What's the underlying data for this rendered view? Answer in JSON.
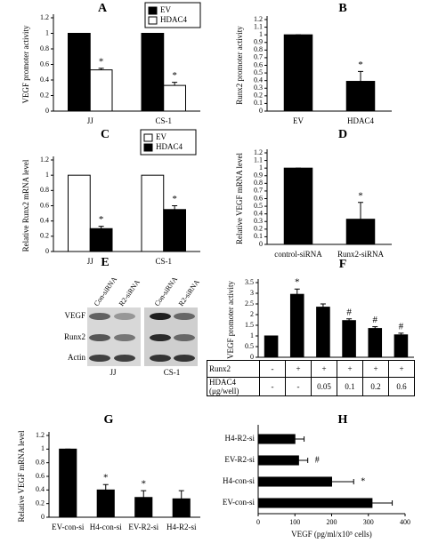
{
  "chart_data": [
    {
      "type": "bar",
      "label": "A",
      "ylabel": "VEGF promoter activity",
      "categories": [
        "JJ",
        "CS-1"
      ],
      "series": [
        {
          "name": "EV",
          "color": "#000000",
          "values": [
            1,
            1
          ]
        },
        {
          "name": "HDAC4",
          "color": "#ffffff",
          "values": [
            0.53,
            0.33
          ],
          "errors": [
            0.02,
            0.04
          ],
          "annotations": [
            "*",
            "*"
          ]
        }
      ],
      "ylim": [
        0,
        1.2
      ],
      "yticks": [
        0,
        0.2,
        0.4,
        0.6,
        0.8,
        1,
        1.2
      ],
      "legend": "upper right"
    },
    {
      "type": "bar",
      "label": "B",
      "ylabel": "Runx2 promoter activity",
      "categories": [
        "EV",
        "HDAC4"
      ],
      "values": [
        1,
        0.39
      ],
      "errors": [
        0,
        0.13
      ],
      "annotations": [
        null,
        "*"
      ],
      "color": "#000000",
      "ylim": [
        0,
        1.2
      ],
      "yticks": [
        0,
        0.1,
        0.2,
        0.3,
        0.4,
        0.5,
        0.6,
        0.7,
        0.8,
        0.9,
        1,
        1.1,
        1.2
      ]
    },
    {
      "type": "bar",
      "label": "C",
      "ylabel": "Relative Runx2 mRNA level",
      "categories": [
        "JJ",
        "CS-1"
      ],
      "series": [
        {
          "name": "EV",
          "color": "#ffffff",
          "values": [
            1,
            1
          ]
        },
        {
          "name": "HDAC4",
          "color": "#000000",
          "values": [
            0.3,
            0.55
          ],
          "errors": [
            0.03,
            0.05
          ],
          "annotations": [
            "*",
            "*"
          ]
        }
      ],
      "ylim": [
        0,
        1.2
      ],
      "yticks": [
        0,
        0.2,
        0.4,
        0.6,
        0.8,
        1,
        1.2
      ],
      "legend": "upper right"
    },
    {
      "type": "bar",
      "label": "D",
      "ylabel": "Relative VEGF mRNA level",
      "categories": [
        "control-siRNA",
        "Runx2-siRNA"
      ],
      "values": [
        1,
        0.33
      ],
      "errors": [
        0,
        0.22
      ],
      "annotations": [
        null,
        "*"
      ],
      "color": "#000000",
      "ylim": [
        0,
        1.2
      ],
      "yticks": [
        0,
        0.1,
        0.2,
        0.3,
        0.4,
        0.5,
        0.6,
        0.7,
        0.8,
        0.9,
        1,
        1.1,
        1.2
      ]
    },
    {
      "type": "bar",
      "label": "F",
      "ylabel": "VEGF promoter activity",
      "values": [
        1,
        2.95,
        2.35,
        1.72,
        1.35,
        1.05
      ],
      "errors": [
        0,
        0.25,
        0.15,
        0.08,
        0.08,
        0.08
      ],
      "annotations": [
        null,
        "*",
        null,
        "#",
        "#",
        "#"
      ],
      "color": "#000000",
      "ylim": [
        0,
        3.5
      ],
      "yticks": [
        0,
        0.5,
        1,
        1.5,
        2,
        2.5,
        3,
        3.5
      ],
      "table": {
        "rows": [
          {
            "label": "Runx2",
            "cells": [
              "-",
              "+",
              "+",
              "+",
              "+",
              "+"
            ]
          },
          {
            "label": "HDAC4 (μg/well)",
            "cells": [
              "-",
              "-",
              "0.05",
              "0.1",
              "0.2",
              "0.6"
            ]
          }
        ]
      }
    },
    {
      "type": "bar",
      "label": "G",
      "ylabel": "Relative VEGF mRNA level",
      "categories": [
        "EV-con-si",
        "H4-con-si",
        "EV-R2-si",
        "H4-R2-si"
      ],
      "values": [
        1,
        0.4,
        0.29,
        0.27
      ],
      "errors": [
        0,
        0.08,
        0.1,
        0.12
      ],
      "annotations": [
        null,
        "*",
        "*",
        null
      ],
      "color": "#000000",
      "ylim": [
        0,
        1.2
      ],
      "yticks": [
        0,
        0.2,
        0.4,
        0.6,
        0.8,
        1,
        1.2
      ]
    },
    {
      "type": "barh",
      "label": "H",
      "xlabel": "VEGF (pg/ml/x10⁵ cells)",
      "categories": [
        "H4-R2-si",
        "EV-R2-si",
        "H4-con-si",
        "EV-con-si"
      ],
      "values": [
        100,
        110,
        200,
        310
      ],
      "errors": [
        25,
        25,
        60,
        55
      ],
      "annotations": [
        null,
        "#",
        "*",
        null
      ],
      "color": "#000000",
      "xlim": [
        0,
        400
      ],
      "xticks": [
        0,
        100,
        200,
        300,
        400
      ]
    }
  ],
  "blot": {
    "label": "E",
    "lanes": [
      "Con-siRNA",
      "R2-siRNA",
      "Con-siRNA",
      "R2-siRNA"
    ],
    "bands": [
      "VEGF",
      "Runx2",
      "Actin"
    ],
    "groups": [
      "JJ",
      "CS-1"
    ]
  }
}
